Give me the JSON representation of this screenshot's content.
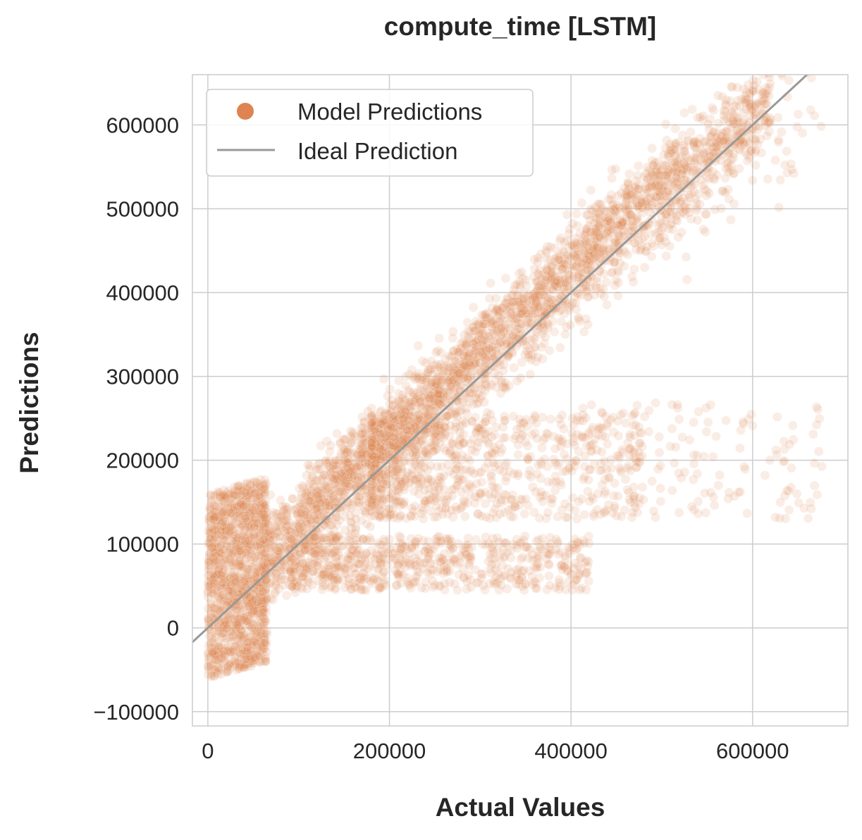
{
  "chart_data": {
    "type": "scatter",
    "title": "compute_time [LSTM]",
    "xlabel": "Actual Values",
    "ylabel": "Predictions",
    "xlim": [
      -17000,
      705000
    ],
    "ylim": [
      -117000,
      660000
    ],
    "x_ticks": [
      0,
      200000,
      400000,
      600000
    ],
    "y_ticks": [
      -100000,
      0,
      100000,
      200000,
      300000,
      400000,
      500000,
      600000
    ],
    "x_tick_labels": [
      "0",
      "200000",
      "400000",
      "600000"
    ],
    "y_tick_labels": [
      "−100000",
      "0",
      "100000",
      "200000",
      "300000",
      "400000",
      "500000",
      "600000"
    ],
    "grid": true,
    "legend_position": "top-left",
    "series": [
      {
        "name": "Model Predictions",
        "kind": "scatter",
        "color": "#dd8452",
        "point_alpha": 0.15,
        "approx_points": 6000,
        "clusters": [
          {
            "desc": "dense band along diagonal",
            "x_range": [
              0,
              680000
            ],
            "y_center": "x",
            "y_spread": 60000
          },
          {
            "desc": "vertical cloud near zero actual",
            "x_range": [
              0,
              70000
            ],
            "y_range": [
              -80000,
              170000
            ]
          },
          {
            "desc": "upper band above diagonal",
            "x_range": [
              100000,
              560000
            ],
            "y_center": "x+40000",
            "y_spread": 35000
          },
          {
            "desc": "underprediction band",
            "x_range": [
              200000,
              680000
            ],
            "y_range": [
              130000,
              260000
            ]
          },
          {
            "desc": "lower underprediction branch",
            "x_range": [
              100000,
              480000
            ],
            "y_range": [
              35000,
              110000
            ]
          }
        ]
      },
      {
        "name": "Ideal Prediction",
        "kind": "line",
        "color": "#999999",
        "x": [
          -40000,
          720000
        ],
        "y": [
          -40000,
          720000
        ]
      }
    ],
    "legend": [
      "Model Predictions",
      "Ideal Prediction"
    ]
  }
}
